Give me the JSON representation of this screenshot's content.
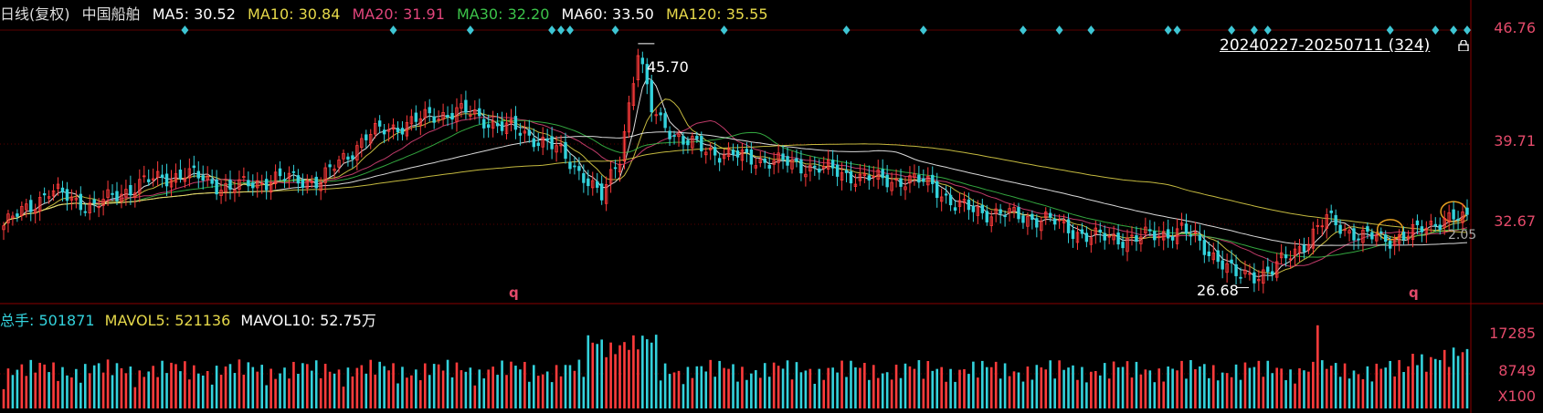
{
  "header": {
    "period": "日线(复权)",
    "stock_name": "中国船舶",
    "ma": [
      {
        "label": "MA5: 30.52",
        "color": "#ffffff"
      },
      {
        "label": "MA10: 30.84",
        "color": "#e6d94a"
      },
      {
        "label": "MA20: 31.91",
        "color": "#e0457b"
      },
      {
        "label": "MA30: 32.20",
        "color": "#3cc34a"
      },
      {
        "label": "MA60: 33.50",
        "color": "#ffffff"
      },
      {
        "label": "MA120: 35.55",
        "color": "#e6d94a"
      }
    ]
  },
  "range_label": "20240227-20250711 (324)",
  "price_axis": [
    "46.76",
    "39.71",
    "32.67"
  ],
  "annotations": {
    "high": "45.70",
    "low": "26.68",
    "ma_tag": "2.05",
    "q": "q"
  },
  "volume_header": {
    "total": "总手: 501871",
    "mavol5": "MAVOL5: 521136",
    "mavol10": "MAVOL10: 52.75万"
  },
  "volume_axis": [
    "17285",
    "8749",
    "X100"
  ],
  "colors": {
    "up": "#ff3b3b",
    "down": "#33d2dc",
    "grid": "#5a0000",
    "label": "#e34a6a"
  },
  "chart_data": {
    "type": "candlestick",
    "title": "中国船舶",
    "x_range": [
      "20240227",
      "20250711"
    ],
    "bars": 324,
    "ylim": [
      26.0,
      46.76
    ],
    "price_ticks": [
      46.76,
      39.71,
      32.67
    ],
    "high": 45.7,
    "low": 26.68,
    "close_path": [
      [
        0,
        31.5
      ],
      [
        10,
        34.2
      ],
      [
        20,
        33.0
      ],
      [
        30,
        34.8
      ],
      [
        40,
        35.6
      ],
      [
        50,
        34.4
      ],
      [
        60,
        35.2
      ],
      [
        70,
        35.0
      ],
      [
        80,
        38.5
      ],
      [
        90,
        39.6
      ],
      [
        100,
        40.5
      ],
      [
        110,
        39.3
      ],
      [
        120,
        38.0
      ],
      [
        128,
        35.5
      ],
      [
        132,
        33.6
      ],
      [
        136,
        37.0
      ],
      [
        140,
        45.0
      ],
      [
        143,
        40.5
      ],
      [
        150,
        38.0
      ],
      [
        160,
        37.0
      ],
      [
        170,
        36.5
      ],
      [
        180,
        36.0
      ],
      [
        190,
        35.2
      ],
      [
        200,
        35.0
      ],
      [
        205,
        34.8
      ],
      [
        210,
        33.0
      ],
      [
        220,
        32.4
      ],
      [
        230,
        32.0
      ],
      [
        240,
        30.6
      ],
      [
        250,
        30.5
      ],
      [
        260,
        31.2
      ],
      [
        268,
        29.0
      ],
      [
        272,
        27.5
      ],
      [
        280,
        28.0
      ],
      [
        288,
        30.5
      ],
      [
        292,
        32.0
      ],
      [
        300,
        30.6
      ],
      [
        306,
        30.5
      ],
      [
        312,
        31.0
      ],
      [
        318,
        32.2
      ],
      [
        324,
        31.8
      ]
    ],
    "volume_ticks": [
      17285,
      8749
    ],
    "volume_unit": "X100"
  }
}
